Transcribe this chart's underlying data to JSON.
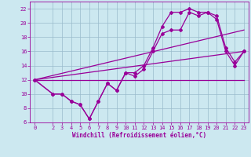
{
  "xlabel": "Windchill (Refroidissement éolien,°C)",
  "bg_color": "#cce8f0",
  "line_color": "#990099",
  "marker": "D",
  "marker_size": 2,
  "linewidth": 0.9,
  "xlim": [
    -0.5,
    23.5
  ],
  "ylim": [
    6,
    23
  ],
  "xticks": [
    0,
    2,
    3,
    4,
    5,
    6,
    7,
    8,
    9,
    10,
    11,
    12,
    13,
    14,
    15,
    16,
    17,
    18,
    19,
    20,
    21,
    22,
    23
  ],
  "yticks": [
    6,
    8,
    10,
    12,
    14,
    16,
    18,
    20,
    22
  ],
  "grid_color": "#99bbcc",
  "series": [
    {
      "x": [
        0,
        2,
        3,
        4,
        5,
        6,
        7,
        8,
        9,
        10,
        11,
        12,
        13,
        14,
        15,
        16,
        17,
        18,
        19,
        20,
        21,
        22,
        23
      ],
      "y": [
        12,
        10,
        10,
        9,
        8.5,
        6.5,
        9,
        11.5,
        10.5,
        13,
        12.5,
        13.5,
        16,
        18.5,
        19,
        19,
        21.5,
        21,
        21.5,
        20.5,
        16,
        14,
        16
      ],
      "has_marker": true
    },
    {
      "x": [
        0,
        2,
        3,
        4,
        5,
        6,
        7,
        8,
        9,
        10,
        11,
        12,
        13,
        14,
        15,
        16,
        17,
        18,
        19,
        20,
        21,
        22,
        23
      ],
      "y": [
        12,
        10,
        10,
        9,
        8.5,
        6.5,
        9,
        11.5,
        10.5,
        13,
        13,
        14,
        16.5,
        19.5,
        21.5,
        21.5,
        22,
        21.5,
        21.5,
        21,
        16.5,
        14.5,
        16
      ],
      "has_marker": true
    },
    {
      "x": [
        0,
        23
      ],
      "y": [
        12,
        12
      ],
      "has_marker": false
    },
    {
      "x": [
        0,
        23
      ],
      "y": [
        12,
        16
      ],
      "has_marker": false
    },
    {
      "x": [
        0,
        23
      ],
      "y": [
        12,
        19
      ],
      "has_marker": false
    }
  ],
  "xlabel_fontsize": 5.5,
  "tick_fontsize": 5,
  "xlabel_fontfamily": "monospace"
}
